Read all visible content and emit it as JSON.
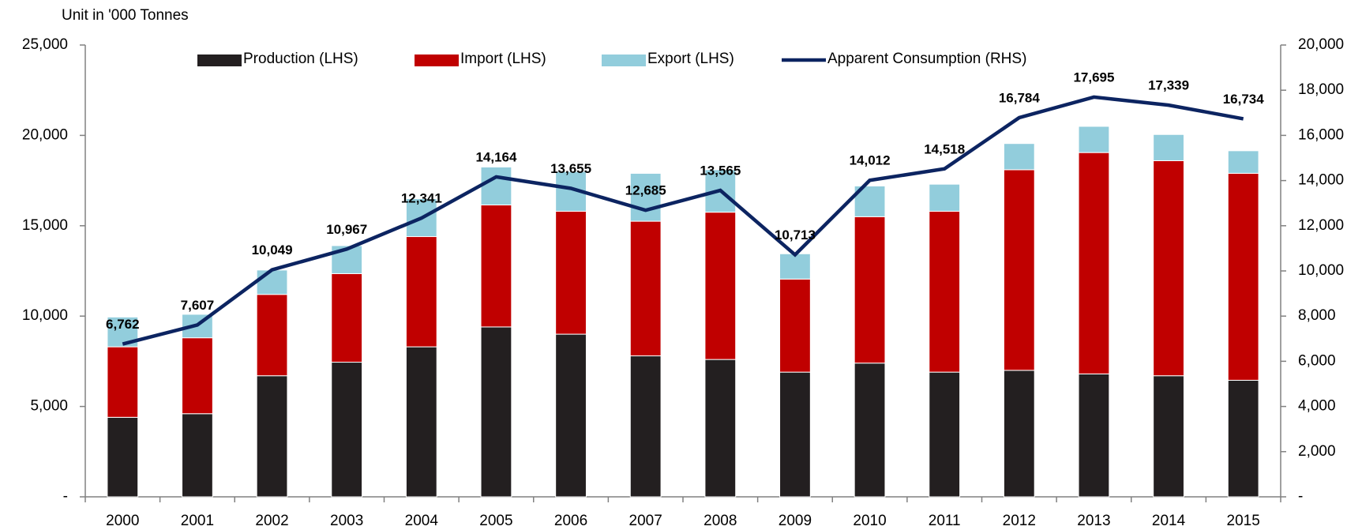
{
  "chart_data": {
    "type": "bar",
    "stacked": true,
    "y_label": "Unit in '000 Tonnes",
    "categories": [
      "2000",
      "2001",
      "2002",
      "2003",
      "2004",
      "2005",
      "2006",
      "2007",
      "2008",
      "2009",
      "2010",
      "2011",
      "2012",
      "2013",
      "2014",
      "2015"
    ],
    "series": [
      {
        "name": "Production (LHS)",
        "color": "#231f20",
        "values": [
          4400,
          4600,
          6700,
          7450,
          8300,
          9400,
          9000,
          7800,
          7600,
          6900,
          7400,
          6900,
          7000,
          6800,
          6700,
          6450
        ]
      },
      {
        "name": "Import (LHS)",
        "color": "#c00000",
        "values": [
          3900,
          4200,
          4500,
          4900,
          6100,
          6750,
          6800,
          7450,
          8150,
          5150,
          8100,
          8900,
          11100,
          12250,
          11900,
          11450
        ]
      },
      {
        "name": "Export (LHS)",
        "color": "#92cddc",
        "values": [
          1650,
          1300,
          1350,
          1550,
          2100,
          2100,
          2200,
          2650,
          2350,
          1400,
          1700,
          1500,
          1450,
          1450,
          1450,
          1250
        ]
      },
      {
        "name": "Apparent Consumption (RHS)",
        "type": "line",
        "axis": "y2",
        "color": "#0c2461",
        "values": [
          6762,
          7607,
          10049,
          10967,
          12341,
          14164,
          13655,
          12685,
          13565,
          10713,
          14012,
          14518,
          16784,
          17695,
          17339,
          16734
        ],
        "value_labels": [
          "6,762",
          "7,607",
          "10,049",
          "10,967",
          "12,341",
          "14,164",
          "13,655",
          "12,685",
          "13,565",
          "10,713",
          "14,012",
          "14,518",
          "16,784",
          "17,695",
          "17,339",
          "16,734"
        ]
      }
    ],
    "ylim": [
      0,
      25000
    ],
    "yticks": [
      {
        "value": 0,
        "label": "-"
      },
      {
        "value": 5000,
        "label": "5,000"
      },
      {
        "value": 10000,
        "label": "10,000"
      },
      {
        "value": 15000,
        "label": "15,000"
      },
      {
        "value": 20000,
        "label": "20,000"
      },
      {
        "value": 25000,
        "label": "25,000"
      }
    ],
    "y2lim": [
      0,
      20000
    ],
    "y2ticks": [
      {
        "value": 0,
        "label": "-"
      },
      {
        "value": 2000,
        "label": "2,000"
      },
      {
        "value": 4000,
        "label": "4,000"
      },
      {
        "value": 6000,
        "label": "6,000"
      },
      {
        "value": 8000,
        "label": "8,000"
      },
      {
        "value": 10000,
        "label": "10,000"
      },
      {
        "value": 12000,
        "label": "12,000"
      },
      {
        "value": 14000,
        "label": "14,000"
      },
      {
        "value": 16000,
        "label": "16,000"
      },
      {
        "value": 18000,
        "label": "18,000"
      },
      {
        "value": 20000,
        "label": "20,000"
      }
    ],
    "legend": "top"
  }
}
